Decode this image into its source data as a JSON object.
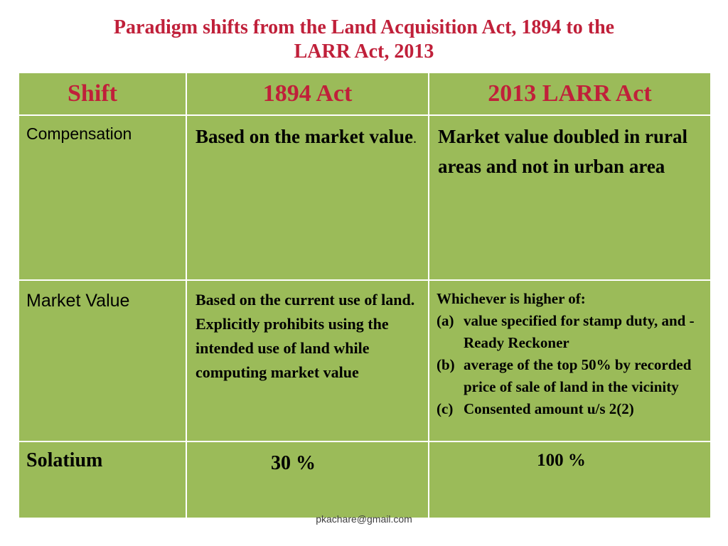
{
  "title": {
    "line1": "Paradigm shifts from the Land Acquisition Act, 1894 to the",
    "line2": "LARR Act, 2013"
  },
  "table": {
    "headers": [
      "Shift",
      "1894 Act",
      "2013 LARR Act"
    ],
    "rows": [
      {
        "shift": "Compensation",
        "act_1894": "Based on the market value",
        "act_1894_suffix": ".",
        "act_2013": "Market value doubled in rural areas and not in urban area"
      },
      {
        "shift": "Market Value",
        "act_1894": "Based on the current use of land. Explicitly prohibits using the intended use of land while computing market value",
        "act_2013_intro": "Whichever is higher of:",
        "act_2013_items": [
          {
            "marker": "(a)",
            "text": "value specified for stamp duty, and  - Ready Reckoner"
          },
          {
            "marker": "(b)",
            "text": "average of the top 50% by recorded price of sale of land in the vicinity"
          },
          {
            "marker": "(c)",
            "text": "Consented amount u/s 2(2)"
          }
        ]
      },
      {
        "shift": "Solatium",
        "act_1894": "30 %",
        "act_2013": "100 %"
      }
    ]
  },
  "footer": "pkachare@gmail.com",
  "colors": {
    "title": "#c0203a",
    "table_bg": "#9bbb59",
    "border": "#ffffff"
  }
}
